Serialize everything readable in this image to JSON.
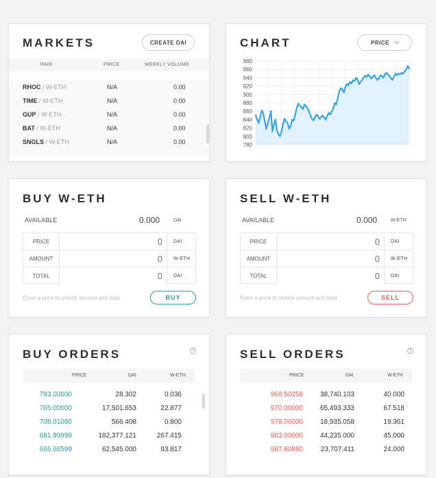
{
  "colors": {
    "accent_buy": "#2a9d8f",
    "accent_sell": "#e05a55",
    "chart_line": "#3aa3e0",
    "chart_fill": "#e2f1fb"
  },
  "markets": {
    "title": "MARKETS",
    "create_button": "CREATE DAI",
    "columns": {
      "pair": "PAIR",
      "price": "PRICE",
      "volume": "WEEKLY VOLUME"
    },
    "rows": [
      {
        "base": "RHOC",
        "slash": "/",
        "quote": "W-ETH",
        "price": "N/A",
        "volume": "0.00"
      },
      {
        "base": "TIME",
        "slash": "/",
        "quote": "W-ETH",
        "price": "N/A",
        "volume": "0.00"
      },
      {
        "base": "GUP",
        "slash": "/",
        "quote": "W-ETH",
        "price": "N/A",
        "volume": "0.00"
      },
      {
        "base": "BAT",
        "slash": "/",
        "quote": "W-ETH",
        "price": "N/A",
        "volume": "0.00"
      },
      {
        "base": "SNGLS",
        "slash": "/",
        "quote": "W-ETH",
        "price": "N/A",
        "volume": "0.00"
      }
    ]
  },
  "chart": {
    "title": "CHART",
    "dropdown": "PRICE",
    "dropdown_icon": "chevron-down-icon"
  },
  "chart_data": {
    "type": "area",
    "ylim": [
      780,
      980
    ],
    "yticks": [
      "980",
      "960",
      "940",
      "920",
      "900",
      "880",
      "860",
      "840",
      "820",
      "800",
      "780"
    ],
    "grid": true,
    "y": [
      850,
      840,
      832,
      848,
      862,
      855,
      835,
      818,
      832,
      845,
      860,
      812,
      828,
      840,
      815,
      805,
      800,
      812,
      830,
      842,
      836,
      832,
      818,
      825,
      840,
      838,
      852,
      868,
      878,
      874,
      870,
      865,
      876,
      872,
      868,
      860,
      850,
      842,
      838,
      845,
      852,
      848,
      842,
      846,
      850,
      845,
      840,
      848,
      856,
      852,
      860,
      866,
      880,
      876,
      892,
      908,
      915,
      912,
      905,
      918,
      925,
      922,
      930,
      926,
      934,
      932,
      940,
      936,
      925,
      930,
      935,
      940,
      945,
      942,
      948,
      944,
      938,
      942,
      946,
      940,
      935,
      938,
      946,
      944,
      940,
      948,
      952,
      948,
      944,
      938,
      935,
      944,
      950,
      946,
      950,
      948,
      952,
      950,
      955,
      960,
      968,
      962
    ]
  },
  "buy": {
    "title": "BUY W-ETH",
    "available_label": "AVAILABLE",
    "available_value": "0.000",
    "available_unit": "DAI",
    "fields": [
      {
        "label": "PRICE",
        "value": "0",
        "unit": "DAI"
      },
      {
        "label": "AMOUNT",
        "value": "0",
        "unit": "W-ETH"
      },
      {
        "label": "TOTAL",
        "value": "0",
        "unit": "DAI"
      }
    ],
    "hint": "Enter a price to unlock amount and total.",
    "button": "BUY"
  },
  "sell": {
    "title": "SELL W-ETH",
    "available_label": "AVAILABLE",
    "available_value": "0.000",
    "available_unit": "W-ETH",
    "fields": [
      {
        "label": "PRICE",
        "value": "0",
        "unit": "DAI"
      },
      {
        "label": "AMOUNT",
        "value": "0",
        "unit": "W-ETH"
      },
      {
        "label": "TOTAL",
        "value": "0",
        "unit": "DAI"
      }
    ],
    "hint": "Enter a price to unlock amount and total.",
    "button": "SELL"
  },
  "buy_orders": {
    "title": "BUY ORDERS",
    "help": "?",
    "columns": {
      "price": "PRICE",
      "dai": "DAI",
      "weth": "W-ETH"
    },
    "rows": [
      {
        "price": "783.00000",
        "dai": "28.302",
        "weth": "0.036"
      },
      {
        "price": "765.00000",
        "dai": "17,501.653",
        "weth": "22.877"
      },
      {
        "price": "708.01080",
        "dai": "566.408",
        "weth": "0.800"
      },
      {
        "price": "681.99999",
        "dai": "182,377.121",
        "weth": "267.415"
      },
      {
        "price": "666.66599",
        "dai": "62,545.000",
        "weth": "93.817"
      }
    ]
  },
  "sell_orders": {
    "title": "SELL ORDERS",
    "help": "?",
    "columns": {
      "price": "PRICE",
      "dai": "DAI",
      "weth": "W-ETH"
    },
    "rows": [
      {
        "price": "968.50258",
        "dai": "38,740.103",
        "weth": "40.000"
      },
      {
        "price": "970.00000",
        "dai": "65,493.333",
        "weth": "67.518"
      },
      {
        "price": "978.00000",
        "dai": "18,935.058",
        "weth": "19.361"
      },
      {
        "price": "983.00000",
        "dai": "44,235.000",
        "weth": "45.000"
      },
      {
        "price": "987.80880",
        "dai": "23,707.411",
        "weth": "24.000"
      }
    ]
  }
}
